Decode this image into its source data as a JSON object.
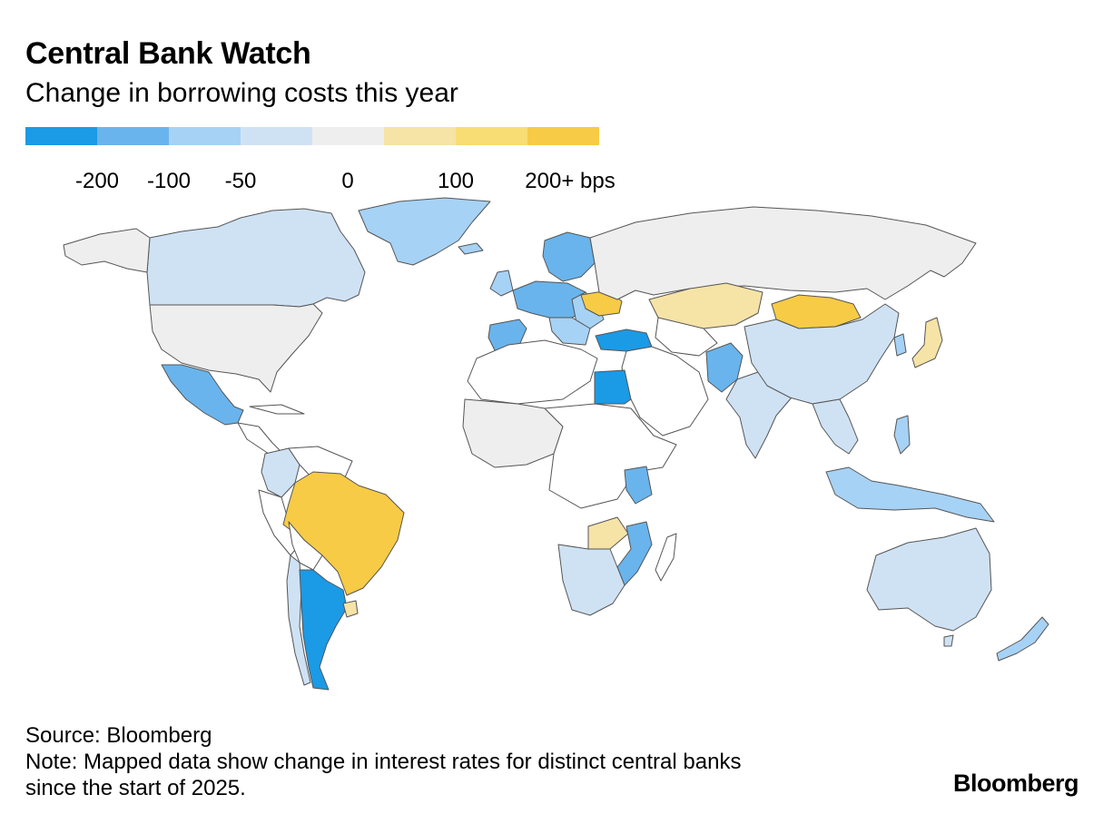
{
  "title": "Central Bank Watch",
  "subtitle": "Change in borrowing costs this year",
  "legend": {
    "colors": [
      "#1b9ae6",
      "#69b4ec",
      "#a6d2f5",
      "#cfe2f4",
      "#eeeeee",
      "#f6e3a6",
      "#f7dd73",
      "#f7cb45"
    ],
    "labels": [
      "-200",
      "-100",
      "-50",
      "0",
      "100",
      "200+ bps"
    ]
  },
  "map": {
    "colors": {
      "strong_cut": "#1b9ae6",
      "cut_100": "#69b4ec",
      "cut_50": "#a6d2f5",
      "small_cut": "#cfe2f4",
      "no_change": "#eeeeee",
      "hike_small": "#f6e3a6",
      "hike_100": "#f7dd73",
      "hike_200": "#f7cb45",
      "no_data": "#ffffff"
    }
  },
  "source": "Source: Bloomberg",
  "note_line1": "Note: Mapped data show change in interest rates for distinct central banks",
  "note_line2": "since the start of 2025.",
  "brand": "Bloomberg"
}
